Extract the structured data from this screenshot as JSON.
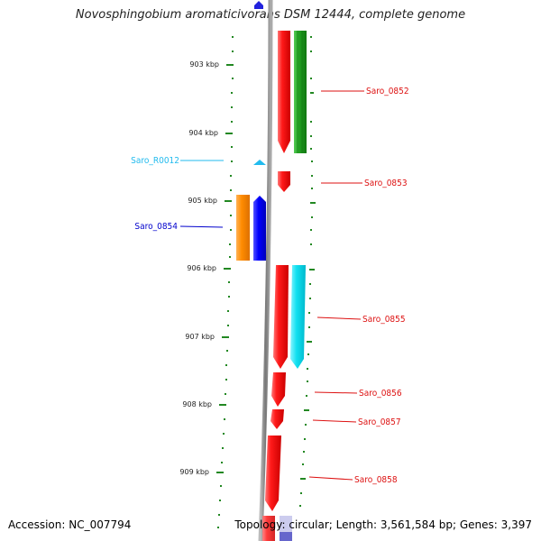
{
  "title": "Novosphingobium aromaticivorans DSM 12444, complete genome",
  "footer": {
    "accession": "Accession: NC_007794",
    "summary": "Topology: circular; Length: 3,561,584 bp; Genes: 3,397"
  },
  "scale": {
    "ticks": [
      "903 kbp",
      "904 kbp",
      "905 kbp",
      "906 kbp",
      "907 kbp",
      "908 kbp",
      "909 kbp"
    ]
  },
  "colors": {
    "red": "#ee1111",
    "green": "#229922",
    "orange": "#ff8800",
    "blue": "#0000ee",
    "cyan": "#11ddee",
    "rna": "#22bbee",
    "dot_green": "#228822",
    "backbone": "#888888"
  },
  "genes": [
    {
      "id": "Saro_0852",
      "strand": "+"
    },
    {
      "id": "Saro_R0012",
      "strand": "-"
    },
    {
      "id": "Saro_0853",
      "strand": "+"
    },
    {
      "id": "Saro_0854",
      "strand": "-"
    },
    {
      "id": "Saro_0855",
      "strand": "+"
    },
    {
      "id": "Saro_0856",
      "strand": "+"
    },
    {
      "id": "Saro_0857",
      "strand": "+"
    },
    {
      "id": "Saro_0858",
      "strand": "+"
    }
  ]
}
